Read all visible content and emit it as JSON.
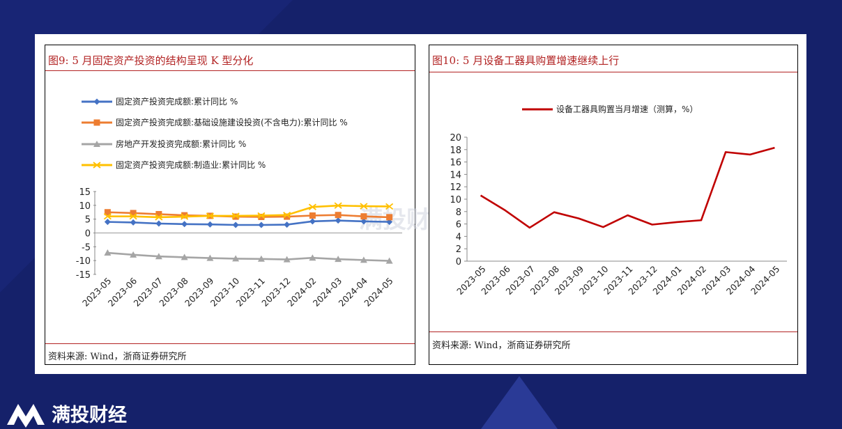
{
  "brand": {
    "name": "满投财经",
    "watermark": "满投财经"
  },
  "left": {
    "title": "图9:   5 月固定资产投资的结构呈现 K 型分化",
    "source": "资料来源:   Wind，浙商证券研究所"
  },
  "right": {
    "title": "图10:   5 月设备工器具购置增速继续上行",
    "source": "资料来源:   Wind，浙商证券研究所"
  },
  "colors": {
    "accent": "#b22222",
    "blue": "#4472c4",
    "orange": "#ed7d31",
    "gray": "#a5a5a5",
    "yellow": "#ffc000",
    "red": "#c00000"
  },
  "chart_data": [
    {
      "type": "line",
      "categories": [
        "2023-05",
        "2023-06",
        "2023-07",
        "2023-08",
        "2023-09",
        "2023-10",
        "2023-11",
        "2023-12",
        "2024-02",
        "2024-03",
        "2024-04",
        "2024-05"
      ],
      "ylim": [
        -15,
        15
      ],
      "yticks": [
        "15",
        "10",
        "5",
        "0",
        "-5",
        "-10",
        "-15"
      ],
      "legend_position": "top",
      "series": [
        {
          "name": "固定资产投资完成额:累计同比  %",
          "marker": "diamond",
          "color": "#4472c4",
          "values": [
            4.0,
            3.8,
            3.4,
            3.2,
            3.1,
            2.9,
            2.9,
            3.0,
            4.2,
            4.5,
            4.2,
            4.0
          ]
        },
        {
          "name": "固定资产投资完成额:基础设施建设投资(不含电力):累计同比  %",
          "marker": "square",
          "color": "#ed7d31",
          "values": [
            7.5,
            7.2,
            6.8,
            6.4,
            6.2,
            5.9,
            5.8,
            5.9,
            6.3,
            6.5,
            6.0,
            5.7
          ]
        },
        {
          "name": "房地产开发投资完成额:累计同比  %",
          "marker": "triangle",
          "color": "#a5a5a5",
          "values": [
            -7.2,
            -7.9,
            -8.5,
            -8.8,
            -9.1,
            -9.3,
            -9.4,
            -9.6,
            -9.0,
            -9.5,
            -9.8,
            -10.1
          ]
        },
        {
          "name": "固定资产投资完成额:制造业:累计同比  %",
          "marker": "x",
          "color": "#ffc000",
          "values": [
            6.0,
            6.0,
            5.7,
            5.9,
            6.2,
            6.2,
            6.3,
            6.5,
            9.4,
            9.9,
            9.7,
            9.6
          ]
        }
      ]
    },
    {
      "type": "line",
      "categories": [
        "2023-05",
        "2023-06",
        "2023-07",
        "2023-08",
        "2023-09",
        "2023-10",
        "2023-11",
        "2023-12",
        "2024-01",
        "2024-02",
        "2024-03",
        "2024-04",
        "2024-05"
      ],
      "ylim": [
        0,
        20
      ],
      "yticks": [
        "20",
        "18",
        "16",
        "14",
        "12",
        "10",
        "8",
        "6",
        "4",
        "2",
        "0"
      ],
      "legend_position": "top",
      "series": [
        {
          "name": "设备工器具购置当月增速（测算，%）",
          "color": "#c00000",
          "values": [
            10.6,
            8.2,
            5.4,
            7.9,
            6.9,
            5.5,
            7.4,
            5.9,
            6.3,
            6.6,
            17.6,
            17.2,
            18.3
          ]
        }
      ]
    }
  ]
}
